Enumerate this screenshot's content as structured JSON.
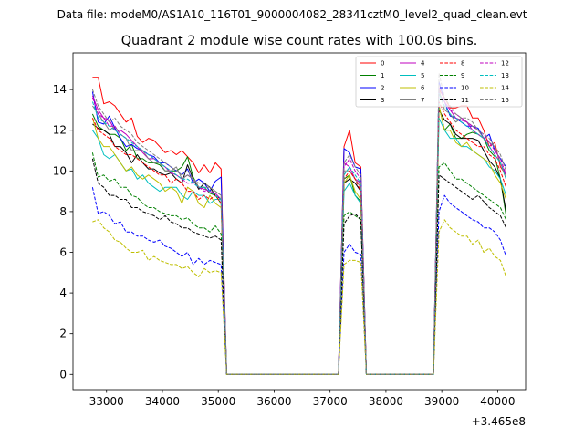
{
  "figure": {
    "suptitle": "Data file: modeM0/AS1A10_116T01_9000004082_28341cztM0_level2_quad_clean.evt"
  },
  "chart_data": {
    "type": "line",
    "title": "Quadrant 2 module wise count rates with 100.0s bins.",
    "xlabel": "",
    "ylabel": "",
    "x_offset_label": "+3.465e8",
    "xlim": [
      32400,
      40500
    ],
    "ylim": [
      -0.75,
      15.8
    ],
    "xticks": [
      33000,
      34000,
      35000,
      36000,
      37000,
      38000,
      39000,
      40000
    ],
    "xtick_labels": [
      "33000",
      "34000",
      "35000",
      "36000",
      "37000",
      "38000",
      "39000",
      "40000"
    ],
    "yticks": [
      0,
      2,
      4,
      6,
      8,
      10,
      12,
      14
    ],
    "ytick_labels": [
      "0",
      "2",
      "4",
      "6",
      "8",
      "10",
      "12",
      "14"
    ],
    "legend_position": "upper-right",
    "segments": [
      {
        "x_start": 32750,
        "x_end": 35050,
        "step": 100
      },
      {
        "x_start": 37250,
        "x_end": 37550,
        "step": 100
      },
      {
        "x_start": 38950,
        "x_end": 40150,
        "step": 100
      }
    ],
    "gap_points": [
      {
        "x": 35150,
        "y": 0
      },
      {
        "x": 37150,
        "y": 0
      },
      {
        "x": 37650,
        "y": 0
      },
      {
        "x": 38850,
        "y": 0
      }
    ],
    "series": [
      {
        "name": "0",
        "color": "#ff0000",
        "dash": "solid",
        "seg1": [
          14.6,
          14.6,
          13.3,
          13.4,
          13.2,
          12.8,
          12.4,
          12.6,
          11.7,
          11.4,
          11.6,
          11.5,
          11.2,
          10.9,
          11.0,
          10.8,
          11.0,
          10.7,
          10.4,
          9.9,
          10.3,
          9.9,
          10.4,
          10.1
        ],
        "seg2": [
          11.2,
          12.0,
          10.4,
          10.2
        ],
        "seg3": [
          14.0,
          13.6,
          13.1,
          13.1,
          13.2,
          13.2,
          12.6,
          12.6,
          12.0,
          11.2,
          11.4,
          10.2,
          9.8
        ]
      },
      {
        "name": "1",
        "color": "#008000",
        "dash": "solid",
        "seg1": [
          12.8,
          12.2,
          12.0,
          11.8,
          11.8,
          11.6,
          11.0,
          11.3,
          10.6,
          10.6,
          10.4,
          10.4,
          10.3,
          10.0,
          10.0,
          10.0,
          10.2,
          10.7,
          9.7,
          9.2,
          9.2,
          8.9,
          8.8,
          8.4
        ],
        "seg2": [
          9.6,
          9.8,
          8.8,
          8.5
        ],
        "seg3": [
          13.2,
          12.0,
          12.3,
          11.6,
          11.6,
          11.8,
          11.9,
          11.8,
          11.6,
          11.0,
          10.7,
          9.6,
          7.8
        ]
      },
      {
        "name": "2",
        "color": "#0000ff",
        "dash": "solid",
        "seg1": [
          13.9,
          12.4,
          12.3,
          12.7,
          12.1,
          11.6,
          11.2,
          11.3,
          11.1,
          11.0,
          10.8,
          10.7,
          10.4,
          10.4,
          10.2,
          10.0,
          9.8,
          10.1,
          9.4,
          9.6,
          9.4,
          9.0,
          9.5,
          9.7
        ],
        "seg2": [
          11.1,
          10.9,
          10.2,
          10.1
        ],
        "seg3": [
          14.4,
          13.4,
          12.7,
          12.6,
          12.4,
          12.2,
          12.2,
          12.1,
          11.6,
          11.8,
          11.0,
          10.6,
          10.2
        ]
      },
      {
        "name": "3",
        "color": "#000000",
        "dash": "solid",
        "seg1": [
          12.3,
          12.1,
          12.0,
          11.8,
          11.2,
          11.2,
          10.9,
          10.4,
          10.8,
          10.4,
          10.1,
          10.1,
          9.9,
          9.8,
          9.9,
          9.6,
          9.4,
          10.3,
          9.6,
          9.1,
          9.4,
          9.2,
          8.8,
          8.6
        ],
        "seg2": [
          9.4,
          9.6,
          9.4,
          9.0
        ],
        "seg3": [
          13.0,
          12.5,
          12.3,
          11.8,
          11.6,
          11.6,
          11.6,
          11.5,
          11.0,
          10.5,
          10.2,
          9.6,
          8.0
        ]
      },
      {
        "name": "4",
        "color": "#bf00bf",
        "dash": "solid",
        "seg1": [
          13.7,
          13.0,
          12.6,
          12.5,
          12.0,
          12.0,
          11.8,
          11.5,
          11.2,
          10.9,
          10.6,
          10.6,
          10.4,
          10.2,
          9.9,
          9.8,
          9.6,
          9.8,
          9.6,
          9.2,
          9.1,
          9.0,
          8.9,
          8.6
        ],
        "seg2": [
          10.4,
          10.2,
          9.6,
          9.4
        ],
        "seg3": [
          13.8,
          13.4,
          13.0,
          12.6,
          12.5,
          12.4,
          12.0,
          11.8,
          11.6,
          11.2,
          10.8,
          10.4,
          9.8
        ]
      },
      {
        "name": "5",
        "color": "#00bfbf",
        "dash": "solid",
        "seg1": [
          12.0,
          11.6,
          10.8,
          10.6,
          10.8,
          10.4,
          10.0,
          10.1,
          9.6,
          9.8,
          9.4,
          9.2,
          9.0,
          9.2,
          9.2,
          9.2,
          8.8,
          8.6,
          9.0,
          8.8,
          8.8,
          8.4,
          8.6,
          8.6
        ],
        "seg2": [
          9.0,
          9.4,
          8.8,
          8.4
        ],
        "seg3": [
          12.6,
          12.0,
          11.6,
          11.6,
          11.2,
          11.2,
          11.0,
          10.8,
          10.6,
          10.2,
          10.0,
          9.6,
          8.8
        ]
      },
      {
        "name": "6",
        "color": "#bfbf00",
        "dash": "solid",
        "seg1": [
          12.6,
          11.6,
          11.2,
          11.2,
          10.8,
          10.4,
          10.0,
          10.2,
          9.8,
          9.6,
          9.8,
          9.6,
          9.4,
          9.0,
          9.2,
          9.0,
          8.4,
          9.2,
          9.0,
          8.4,
          8.2,
          8.8,
          8.4,
          8.2
        ],
        "seg2": [
          9.4,
          9.8,
          9.0,
          8.6
        ],
        "seg3": [
          13.2,
          12.0,
          12.0,
          11.4,
          11.2,
          11.4,
          11.0,
          10.8,
          10.6,
          10.4,
          9.8,
          9.4,
          8.6
        ]
      },
      {
        "name": "7",
        "color": "#808080",
        "dash": "solid",
        "seg1": [
          13.2,
          12.8,
          12.4,
          12.0,
          12.2,
          11.8,
          11.6,
          11.0,
          11.0,
          11.0,
          10.6,
          10.4,
          10.4,
          10.0,
          10.0,
          10.2,
          9.6,
          9.8,
          9.6,
          9.2,
          9.2,
          9.2,
          9.0,
          8.8
        ],
        "seg2": [
          10.0,
          10.0,
          9.6,
          9.2
        ],
        "seg3": [
          14.0,
          13.0,
          12.8,
          12.4,
          12.6,
          12.4,
          12.2,
          12.0,
          11.6,
          11.4,
          11.2,
          10.4,
          9.6
        ]
      },
      {
        "name": "8",
        "color": "#ff0000",
        "dash": "dashed",
        "seg1": [
          12.6,
          12.0,
          11.8,
          11.6,
          11.2,
          11.0,
          10.8,
          10.8,
          10.6,
          10.4,
          10.2,
          10.0,
          9.8,
          9.8,
          9.4,
          9.6,
          9.4,
          9.0,
          9.0,
          8.6,
          8.8,
          8.6,
          8.8,
          8.4
        ],
        "seg2": [
          9.6,
          10.0,
          9.6,
          9.0
        ],
        "seg3": [
          13.4,
          12.8,
          12.4,
          12.0,
          11.8,
          11.6,
          11.4,
          11.2,
          11.2,
          10.8,
          10.6,
          10.0,
          9.2
        ]
      },
      {
        "name": "9",
        "color": "#008000",
        "dash": "dashed",
        "seg1": [
          10.9,
          9.7,
          9.8,
          9.5,
          9.6,
          9.2,
          9.2,
          8.8,
          8.7,
          8.4,
          8.2,
          8.2,
          8.0,
          7.9,
          7.8,
          7.8,
          7.6,
          7.7,
          7.4,
          7.2,
          7.2,
          7.0,
          7.3,
          6.9
        ],
        "seg2": [
          7.8,
          8.0,
          7.8,
          7.6
        ],
        "seg3": [
          10.2,
          10.4,
          10.0,
          9.6,
          9.6,
          9.4,
          9.2,
          9.0,
          8.8,
          8.6,
          8.4,
          8.2,
          7.6
        ]
      },
      {
        "name": "10",
        "color": "#0000ff",
        "dash": "dashed",
        "seg1": [
          9.2,
          7.9,
          8.0,
          7.8,
          7.4,
          7.5,
          7.0,
          7.0,
          6.8,
          6.8,
          6.6,
          6.5,
          6.6,
          6.3,
          6.2,
          6.0,
          5.8,
          6.0,
          5.4,
          5.7,
          5.4,
          5.6,
          5.5,
          5.4
        ],
        "seg2": [
          6.0,
          6.4,
          6.0,
          5.9
        ],
        "seg3": [
          8.0,
          8.8,
          8.4,
          8.2,
          8.0,
          7.8,
          7.6,
          7.5,
          7.2,
          7.2,
          7.0,
          6.6,
          5.8
        ]
      },
      {
        "name": "11",
        "color": "#000000",
        "dash": "dashed",
        "seg1": [
          10.6,
          9.4,
          9.2,
          8.8,
          8.8,
          8.6,
          8.6,
          8.2,
          8.2,
          8.0,
          7.9,
          7.8,
          7.6,
          7.8,
          7.5,
          7.4,
          7.2,
          7.2,
          7.0,
          6.9,
          6.8,
          6.7,
          6.8,
          6.6
        ],
        "seg2": [
          7.4,
          7.8,
          7.9,
          7.6
        ],
        "seg3": [
          9.8,
          9.6,
          9.4,
          9.2,
          9.0,
          8.8,
          8.6,
          8.8,
          8.5,
          8.2,
          8.0,
          7.8,
          7.2
        ]
      },
      {
        "name": "12",
        "color": "#bf00bf",
        "dash": "dashed",
        "seg1": [
          13.6,
          12.8,
          12.6,
          12.2,
          12.2,
          11.8,
          11.6,
          11.4,
          11.2,
          11.0,
          10.8,
          10.6,
          10.4,
          10.2,
          10.0,
          9.8,
          9.6,
          9.4,
          9.4,
          9.2,
          9.0,
          9.0,
          8.8,
          8.6
        ],
        "seg2": [
          10.2,
          10.6,
          10.0,
          9.6
        ],
        "seg3": [
          14.2,
          13.4,
          13.0,
          12.8,
          12.6,
          12.4,
          12.2,
          12.0,
          11.8,
          11.4,
          11.0,
          10.6,
          9.8
        ]
      },
      {
        "name": "13",
        "color": "#00bfbf",
        "dash": "dashed",
        "seg1": [
          13.4,
          12.6,
          12.4,
          12.2,
          12.0,
          11.8,
          11.6,
          11.4,
          11.2,
          11.0,
          10.8,
          10.6,
          10.4,
          10.2,
          10.0,
          9.8,
          9.6,
          9.6,
          9.4,
          9.2,
          9.2,
          9.0,
          8.8,
          8.6
        ],
        "seg2": [
          9.8,
          10.2,
          9.8,
          9.4
        ],
        "seg3": [
          13.8,
          13.2,
          12.8,
          12.6,
          12.4,
          12.2,
          12.0,
          11.8,
          11.6,
          11.2,
          10.8,
          10.4,
          9.6
        ]
      },
      {
        "name": "14",
        "color": "#bfbf00",
        "dash": "dashed",
        "seg1": [
          7.5,
          7.6,
          7.2,
          7.0,
          6.6,
          6.5,
          6.2,
          6.0,
          6.0,
          6.1,
          5.6,
          5.8,
          5.6,
          5.5,
          5.4,
          5.4,
          5.2,
          5.3,
          5.0,
          4.8,
          5.2,
          5.0,
          5.1,
          5.0
        ],
        "seg2": [
          5.4,
          5.6,
          5.6,
          5.5
        ],
        "seg3": [
          7.0,
          7.6,
          7.2,
          7.0,
          6.8,
          6.8,
          6.4,
          6.6,
          6.0,
          6.2,
          5.8,
          5.6,
          4.8
        ]
      },
      {
        "name": "15",
        "color": "#808080",
        "dash": "dashed",
        "seg1": [
          14.0,
          13.2,
          12.8,
          12.4,
          12.6,
          12.2,
          12.0,
          11.8,
          11.4,
          11.2,
          11.0,
          10.8,
          10.6,
          10.4,
          10.2,
          10.0,
          9.8,
          10.0,
          9.6,
          9.4,
          9.4,
          9.2,
          9.0,
          8.8
        ],
        "seg2": [
          10.4,
          10.8,
          10.2,
          9.8
        ],
        "seg3": [
          14.8,
          13.6,
          13.2,
          12.8,
          12.6,
          12.6,
          12.4,
          12.0,
          11.8,
          11.6,
          11.2,
          10.8,
          10.0
        ]
      }
    ]
  }
}
